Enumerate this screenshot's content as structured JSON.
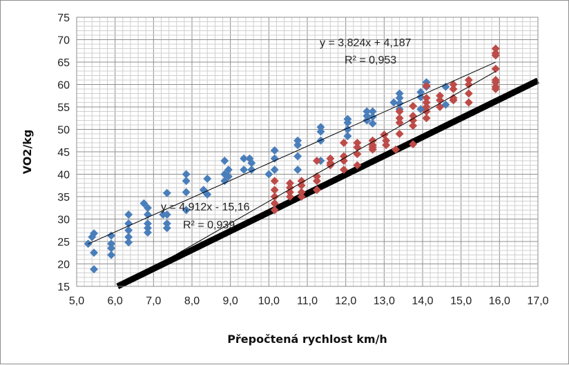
{
  "chart_data": {
    "type": "scatter",
    "xlabel": "Přepočtená rychlost km/h",
    "ylabel": "VO2/kg",
    "xlim": [
      5.0,
      17.0
    ],
    "ylim": [
      15,
      75
    ],
    "x_ticks": [
      "5,0",
      "6,0",
      "7,0",
      "8,0",
      "9,0",
      "10,0",
      "11,0",
      "12,0",
      "13,0",
      "14,0",
      "15,0",
      "16,0",
      "17,0"
    ],
    "y_ticks": [
      "15",
      "20",
      "25",
      "30",
      "35",
      "40",
      "45",
      "50",
      "55",
      "60",
      "65",
      "70",
      "75"
    ],
    "grid": true,
    "legend": "none",
    "series": [
      {
        "color": "#4a7ebb",
        "marker": "diamond",
        "points": [
          [
            5.3,
            24.5
          ],
          [
            5.4,
            26
          ],
          [
            5.45,
            26.8
          ],
          [
            5.45,
            22.5
          ],
          [
            5.45,
            18.8
          ],
          [
            5.9,
            26.3
          ],
          [
            5.9,
            24.5
          ],
          [
            5.9,
            23.5
          ],
          [
            5.9,
            22
          ],
          [
            6.35,
            31
          ],
          [
            6.35,
            29
          ],
          [
            6.35,
            27.5
          ],
          [
            6.35,
            26
          ],
          [
            6.35,
            24.8
          ],
          [
            6.75,
            33.5
          ],
          [
            6.85,
            32.5
          ],
          [
            6.85,
            31
          ],
          [
            6.85,
            29
          ],
          [
            6.85,
            28
          ],
          [
            6.85,
            27
          ],
          [
            7.25,
            31
          ],
          [
            7.35,
            35.8
          ],
          [
            7.35,
            31
          ],
          [
            7.35,
            29
          ],
          [
            7.35,
            28
          ],
          [
            7.85,
            40
          ],
          [
            7.85,
            38.5
          ],
          [
            7.85,
            36
          ],
          [
            7.85,
            32
          ],
          [
            8.3,
            36.5
          ],
          [
            8.4,
            39
          ],
          [
            8.4,
            35.5
          ],
          [
            8.85,
            43
          ],
          [
            8.85,
            40
          ],
          [
            8.85,
            38.5
          ],
          [
            8.95,
            39.5
          ],
          [
            8.95,
            41
          ],
          [
            9.35,
            43.5
          ],
          [
            9.35,
            41
          ],
          [
            9.5,
            43.5
          ],
          [
            9.55,
            42.5
          ],
          [
            9.55,
            41
          ],
          [
            10.0,
            40
          ],
          [
            10.15,
            45.3
          ],
          [
            10.15,
            43.5
          ],
          [
            10.15,
            41
          ],
          [
            10.75,
            47.5
          ],
          [
            10.75,
            46.5
          ],
          [
            10.75,
            44
          ],
          [
            10.75,
            41
          ],
          [
            11.35,
            50.5
          ],
          [
            11.35,
            49.5
          ],
          [
            11.35,
            47.5
          ],
          [
            11.35,
            43
          ],
          [
            12.05,
            52.3
          ],
          [
            12.05,
            51.5
          ],
          [
            12.05,
            50
          ],
          [
            12.05,
            48.5
          ],
          [
            12.55,
            54
          ],
          [
            12.55,
            53
          ],
          [
            12.55,
            52
          ],
          [
            12.7,
            54
          ],
          [
            12.7,
            52.8
          ],
          [
            12.7,
            51.3
          ],
          [
            13.25,
            56
          ],
          [
            13.4,
            58
          ],
          [
            13.4,
            57
          ],
          [
            13.4,
            55.8
          ],
          [
            13.4,
            54.5
          ],
          [
            13.95,
            58.3
          ],
          [
            13.95,
            57.2
          ],
          [
            13.95,
            54.5
          ],
          [
            14.1,
            60.5
          ],
          [
            14.1,
            59.5
          ],
          [
            14.6,
            59.5
          ],
          [
            14.6,
            55.5
          ],
          [
            14.8,
            56.5
          ]
        ]
      },
      {
        "color": "#be4b48",
        "marker": "diamond",
        "points": [
          [
            10.15,
            38.5
          ],
          [
            10.15,
            36.5
          ],
          [
            10.15,
            35
          ],
          [
            10.15,
            33.5
          ],
          [
            10.15,
            32
          ],
          [
            10.55,
            38
          ],
          [
            10.55,
            37
          ],
          [
            10.55,
            36
          ],
          [
            10.55,
            35
          ],
          [
            10.85,
            38.5
          ],
          [
            10.85,
            37.5
          ],
          [
            10.85,
            36
          ],
          [
            10.85,
            35
          ],
          [
            11.25,
            43
          ],
          [
            11.25,
            39.5
          ],
          [
            11.25,
            38.5
          ],
          [
            11.25,
            36.5
          ],
          [
            11.6,
            43.5
          ],
          [
            11.6,
            42.5
          ],
          [
            11.6,
            42
          ],
          [
            11.95,
            47
          ],
          [
            11.95,
            44
          ],
          [
            11.95,
            43
          ],
          [
            11.95,
            41
          ],
          [
            12.3,
            47
          ],
          [
            12.3,
            46
          ],
          [
            12.3,
            44.5
          ],
          [
            12.3,
            42
          ],
          [
            12.7,
            47.5
          ],
          [
            12.7,
            46.5
          ],
          [
            12.7,
            46
          ],
          [
            12.7,
            45.5
          ],
          [
            13.0,
            48.8
          ],
          [
            13.05,
            47.5
          ],
          [
            13.05,
            46.5
          ],
          [
            13.4,
            54
          ],
          [
            13.4,
            52.5
          ],
          [
            13.4,
            51.5
          ],
          [
            13.4,
            49
          ],
          [
            13.3,
            45.5
          ],
          [
            13.75,
            55.2
          ],
          [
            13.75,
            53
          ],
          [
            13.75,
            52
          ],
          [
            13.75,
            50.8
          ],
          [
            13.75,
            46.7
          ],
          [
            14.1,
            57
          ],
          [
            14.1,
            56
          ],
          [
            14.1,
            55
          ],
          [
            14.1,
            54
          ],
          [
            14.1,
            52.5
          ],
          [
            14.1,
            59.7
          ],
          [
            14.45,
            57.5
          ],
          [
            14.45,
            56.5
          ],
          [
            14.45,
            55
          ],
          [
            14.8,
            60
          ],
          [
            14.8,
            59
          ],
          [
            14.8,
            57
          ],
          [
            14.8,
            56.5
          ],
          [
            15.2,
            61
          ],
          [
            15.2,
            60
          ],
          [
            15.2,
            58
          ],
          [
            15.2,
            56
          ],
          [
            15.9,
            68
          ],
          [
            15.9,
            67
          ],
          [
            15.9,
            66.5
          ],
          [
            15.9,
            63.5
          ],
          [
            15.9,
            61
          ],
          [
            15.9,
            60.5
          ],
          [
            15.9,
            59.5
          ],
          [
            15.9,
            59
          ]
        ]
      }
    ],
    "trendlines": [
      {
        "slope": 3.824,
        "intercept": 4.187,
        "x_from": 5.3,
        "x_to": 15.9,
        "label": "y = 3,824x + 4,187",
        "r2": "R² = 0,953"
      },
      {
        "slope": 4.912,
        "intercept": -15.16,
        "x_from": 7.0,
        "x_to": 15.9,
        "label": "y = 4,912x - 15,16",
        "r2": "R² = 0,939"
      }
    ],
    "reference_line": {
      "slope": 4.196,
      "intercept": -10.45,
      "x_from": 6.0,
      "x_to": 17.0,
      "color": "#000000"
    }
  }
}
